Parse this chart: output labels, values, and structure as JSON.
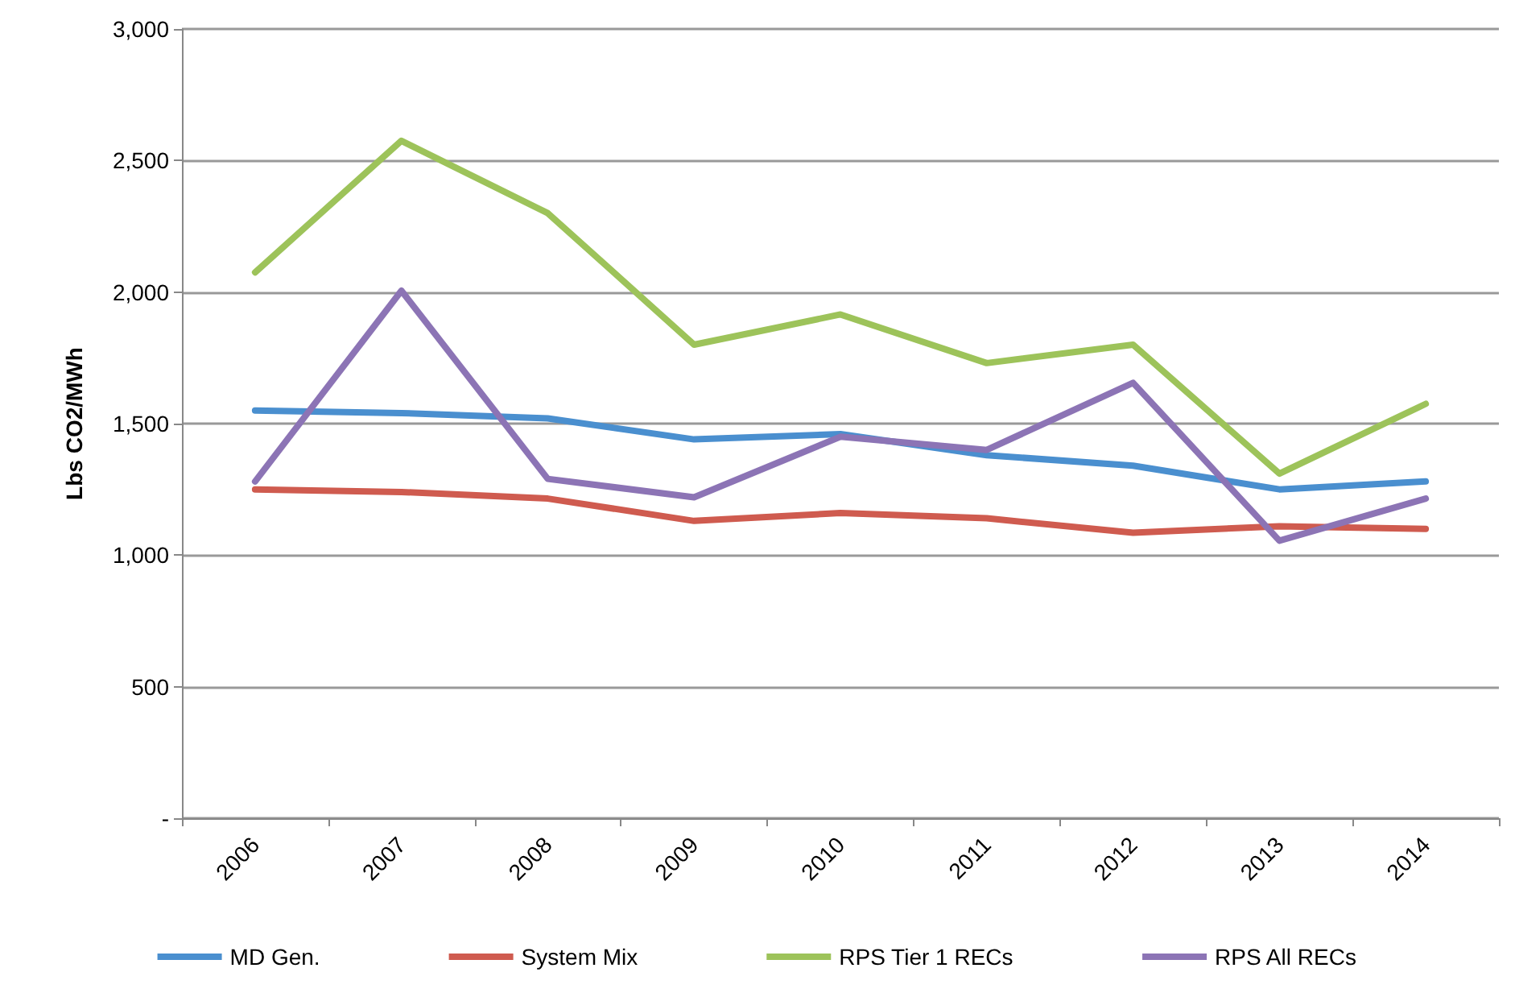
{
  "chart_data": {
    "type": "line",
    "ylabel": "Lbs CO2/MWh",
    "categories": [
      "2006",
      "2007",
      "2008",
      "2009",
      "2010",
      "2011",
      "2012",
      "2013",
      "2014"
    ],
    "series": [
      {
        "name": "MD Gen.",
        "color": "#4a8fcf",
        "values": [
          1550,
          1540,
          1520,
          1440,
          1460,
          1380,
          1340,
          1250,
          1280
        ]
      },
      {
        "name": "System Mix",
        "color": "#cf5b4f",
        "values": [
          1250,
          1240,
          1215,
          1130,
          1160,
          1140,
          1085,
          1110,
          1100
        ]
      },
      {
        "name": "RPS Tier 1 RECs",
        "color": "#9dc35a",
        "values": [
          2075,
          2575,
          2300,
          1800,
          1915,
          1730,
          1800,
          1310,
          1575
        ]
      },
      {
        "name": "RPS All RECs",
        "color": "#8c74b5",
        "values": [
          1280,
          2005,
          1290,
          1220,
          1450,
          1400,
          1655,
          1055,
          1215
        ]
      }
    ],
    "ylim": [
      0,
      3000
    ],
    "yticks": [
      {
        "value": 0,
        "label": "-"
      },
      500,
      {
        "value": 1000,
        "label": "1,000"
      },
      {
        "value": 1500,
        "label": "1,500"
      },
      {
        "value": 2000,
        "label": "2,000"
      },
      {
        "value": 2500,
        "label": "2,500"
      },
      {
        "value": 3000,
        "label": "3,000"
      }
    ],
    "grid": "y",
    "legend": "bottom",
    "marker": "none",
    "line_style": "solid"
  }
}
